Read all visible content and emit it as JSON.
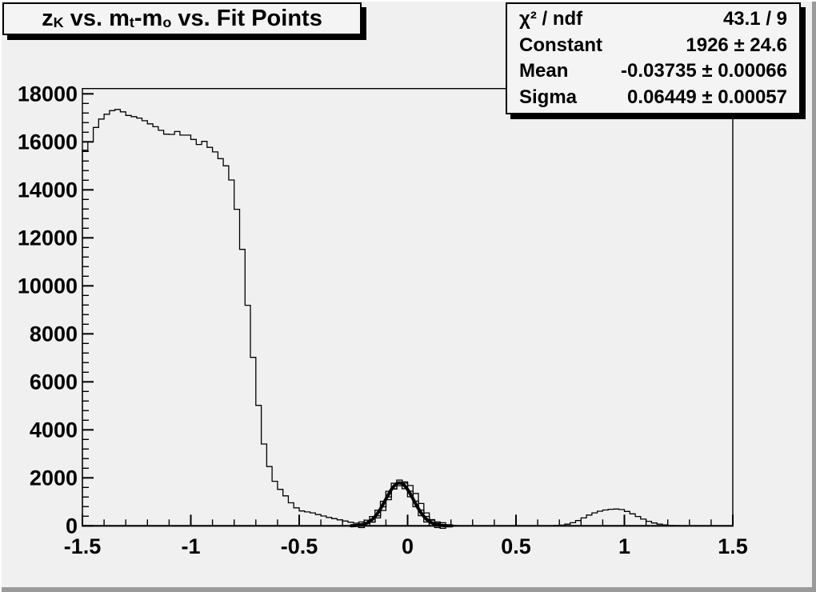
{
  "canvas": {
    "app": "ROOT canvas",
    "background_color": "#f0f0f0",
    "pave_background_color": "#f4f4f4",
    "line_color": "#000000",
    "border_light_color": "#fdfdfd",
    "border_dark_color": "#9a9a9a"
  },
  "title": {
    "plain": "z_K vs. m_t-m_o vs. Fit Points",
    "segments": [
      {
        "text": "z"
      },
      {
        "text": "K",
        "sub": true
      },
      {
        "text": " vs. m"
      },
      {
        "text": "t",
        "sub": true
      },
      {
        "text": "-m"
      },
      {
        "text": "o",
        "sub": true
      },
      {
        "text": " vs. Fit Points"
      }
    ]
  },
  "stats": {
    "rows": [
      {
        "label": "χ² / ndf",
        "value": "43.1 / 9"
      },
      {
        "label": "Constant",
        "value": "1926 ± 24.6"
      },
      {
        "label": "Mean",
        "value": "-0.03735 ± 0.00066"
      },
      {
        "label": "Sigma",
        "value": "0.06449 ± 0.00057"
      }
    ]
  },
  "chart_data": {
    "type": "bar",
    "subtype": "step-histogram",
    "title": "z_K vs. m_t-m_o vs. Fit Points",
    "xlabel": "",
    "ylabel": "",
    "xlim": [
      -1.5,
      1.5
    ],
    "ylim": [
      0,
      18220
    ],
    "grid": false,
    "legend_position": "none",
    "bin_start": -1.5,
    "bin_width": 0.025,
    "values": [
      15650,
      16000,
      16600,
      16950,
      17150,
      17300,
      17350,
      17250,
      17100,
      17050,
      16990,
      16880,
      16750,
      16630,
      16480,
      16320,
      16310,
      16430,
      16280,
      16280,
      16100,
      15890,
      16020,
      15770,
      15580,
      15300,
      15000,
      14410,
      13190,
      11520,
      9190,
      7020,
      5020,
      3410,
      2470,
      1855,
      1520,
      1250,
      960,
      750,
      620,
      580,
      540,
      470,
      410,
      350,
      300,
      250,
      200,
      150,
      110,
      90,
      100,
      160,
      330,
      640,
      1090,
      1530,
      1800,
      1830,
      1680,
      1350,
      930,
      540,
      260,
      110,
      50,
      25,
      12,
      8,
      5,
      4,
      3,
      3,
      2,
      2,
      2,
      2,
      2,
      2,
      2,
      2,
      2,
      3,
      3,
      4,
      6,
      12,
      30,
      70,
      130,
      220,
      330,
      450,
      540,
      610,
      660,
      690,
      700,
      680,
      600,
      500,
      390,
      280,
      190,
      120,
      70,
      40,
      20,
      10,
      5,
      3,
      2,
      1,
      1,
      0,
      0,
      0,
      0,
      0
    ],
    "fit": {
      "type": "gaussian",
      "constant": 1926,
      "constant_error": 24.6,
      "mean": -0.03735,
      "mean_error": 0.00066,
      "sigma": 0.06449,
      "sigma_error": 0.00057,
      "chi2": 43.1,
      "ndf": 9,
      "draw_amplitude": 1790,
      "draw_range": [
        -0.26,
        0.205
      ],
      "marker": "open-square",
      "marker_range": [
        -0.2125,
        0.1625
      ],
      "marker_step": 0.025
    },
    "x_ticks": {
      "values": [
        -1.5,
        -1,
        -0.5,
        0,
        0.5,
        1,
        1.5
      ],
      "labels": [
        "-1.5",
        "-1",
        "-0.5",
        "0",
        "0.5",
        "1",
        "1.5"
      ],
      "minor_step": 0.1
    },
    "y_ticks": {
      "values": [
        0,
        2000,
        4000,
        6000,
        8000,
        10000,
        12000,
        14000,
        16000,
        18000
      ],
      "labels": [
        "0",
        "2000",
        "4000",
        "6000",
        "8000",
        "10000",
        "12000",
        "14000",
        "16000",
        "18000"
      ],
      "minor_step": 400
    }
  }
}
